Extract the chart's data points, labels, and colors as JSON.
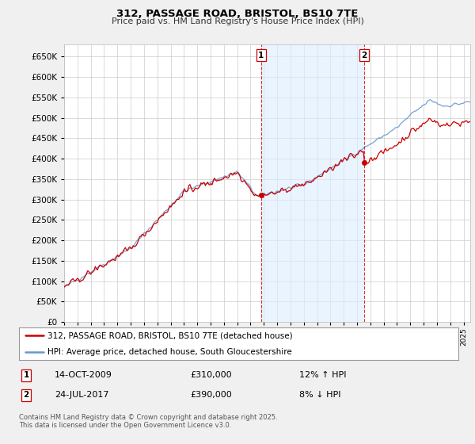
{
  "title": "312, PASSAGE ROAD, BRISTOL, BS10 7TE",
  "subtitle": "Price paid vs. HM Land Registry's House Price Index (HPI)",
  "background_color": "#f0f0f0",
  "plot_bg_color": "#ffffff",
  "grid_color": "#cccccc",
  "red_color": "#cc0000",
  "blue_color": "#6699cc",
  "shade_color": "#ddeeff",
  "annotation1": {
    "label": "1",
    "date": "14-OCT-2009",
    "price": "£310,000",
    "hpi": "12% ↑ HPI"
  },
  "annotation2": {
    "label": "2",
    "date": "24-JUL-2017",
    "price": "£390,000",
    "hpi": "8% ↓ HPI"
  },
  "legend_line1": "312, PASSAGE ROAD, BRISTOL, BS10 7TE (detached house)",
  "legend_line2": "HPI: Average price, detached house, South Gloucestershire",
  "footer": "Contains HM Land Registry data © Crown copyright and database right 2025.\nThis data is licensed under the Open Government Licence v3.0.",
  "ylim": [
    0,
    680000
  ],
  "yticks": [
    0,
    50000,
    100000,
    150000,
    200000,
    250000,
    300000,
    350000,
    400000,
    450000,
    500000,
    550000,
    600000,
    650000
  ],
  "xmin": 1995.0,
  "xmax": 2025.5,
  "ann1_x": 2009.79,
  "ann2_x": 2017.54,
  "ann1_y": 310000,
  "ann2_y": 390000
}
